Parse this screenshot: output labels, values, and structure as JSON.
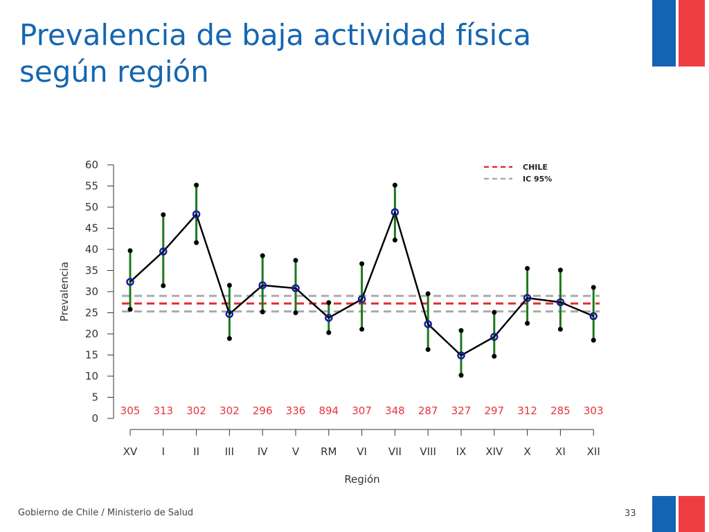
{
  "slide": {
    "title": "Prevalencia de baja actividad física según región",
    "footer": "Gobierno de Chile / Ministerio de Salud",
    "page_number": "33",
    "colors": {
      "title": "#1566b0",
      "flag_blue": "#1464b4",
      "flag_red": "#ef3e42"
    }
  },
  "chart_data": {
    "type": "line",
    "xlabel": "Región",
    "ylabel": "Prevalencia",
    "ylim": [
      0,
      60
    ],
    "yticks": [
      0,
      5,
      10,
      15,
      20,
      25,
      30,
      35,
      40,
      45,
      50,
      55,
      60
    ],
    "grid": false,
    "legend_position": "top-right",
    "categories": [
      "XV",
      "I",
      "II",
      "III",
      "IV",
      "V",
      "RM",
      "VI",
      "VII",
      "VIII",
      "IX",
      "XIV",
      "X",
      "XI",
      "XII"
    ],
    "sample_sizes": [
      "305",
      "313",
      "302",
      "302",
      "296",
      "336",
      "894",
      "307",
      "348",
      "287",
      "327",
      "297",
      "312",
      "285",
      "303"
    ],
    "series": [
      {
        "values": [
          32.3,
          39.5,
          48.3,
          24.7,
          31.5,
          30.8,
          23.8,
          28.2,
          48.8,
          22.3,
          14.9,
          19.3,
          28.5,
          27.5,
          24.2
        ],
        "lower": [
          25.8,
          31.4,
          41.6,
          18.9,
          25.2,
          25.0,
          20.3,
          21.1,
          42.2,
          16.3,
          10.2,
          14.7,
          22.5,
          21.1,
          18.5
        ],
        "upper": [
          39.7,
          48.2,
          55.2,
          31.5,
          38.5,
          37.4,
          27.4,
          36.6,
          55.2,
          29.5,
          20.8,
          25.1,
          35.5,
          35.1,
          31.0
        ],
        "line_color": "#000000",
        "marker_color": "#1a1a9e",
        "errorbar_color": "#1a7a1a"
      }
    ],
    "reference_lines": [
      {
        "name": "CHILE",
        "value": 27.2,
        "color": "#e52a2a"
      },
      {
        "name": "IC 95%",
        "values": [
          25.3,
          29.0
        ],
        "color": "#aaaaaa"
      }
    ]
  }
}
